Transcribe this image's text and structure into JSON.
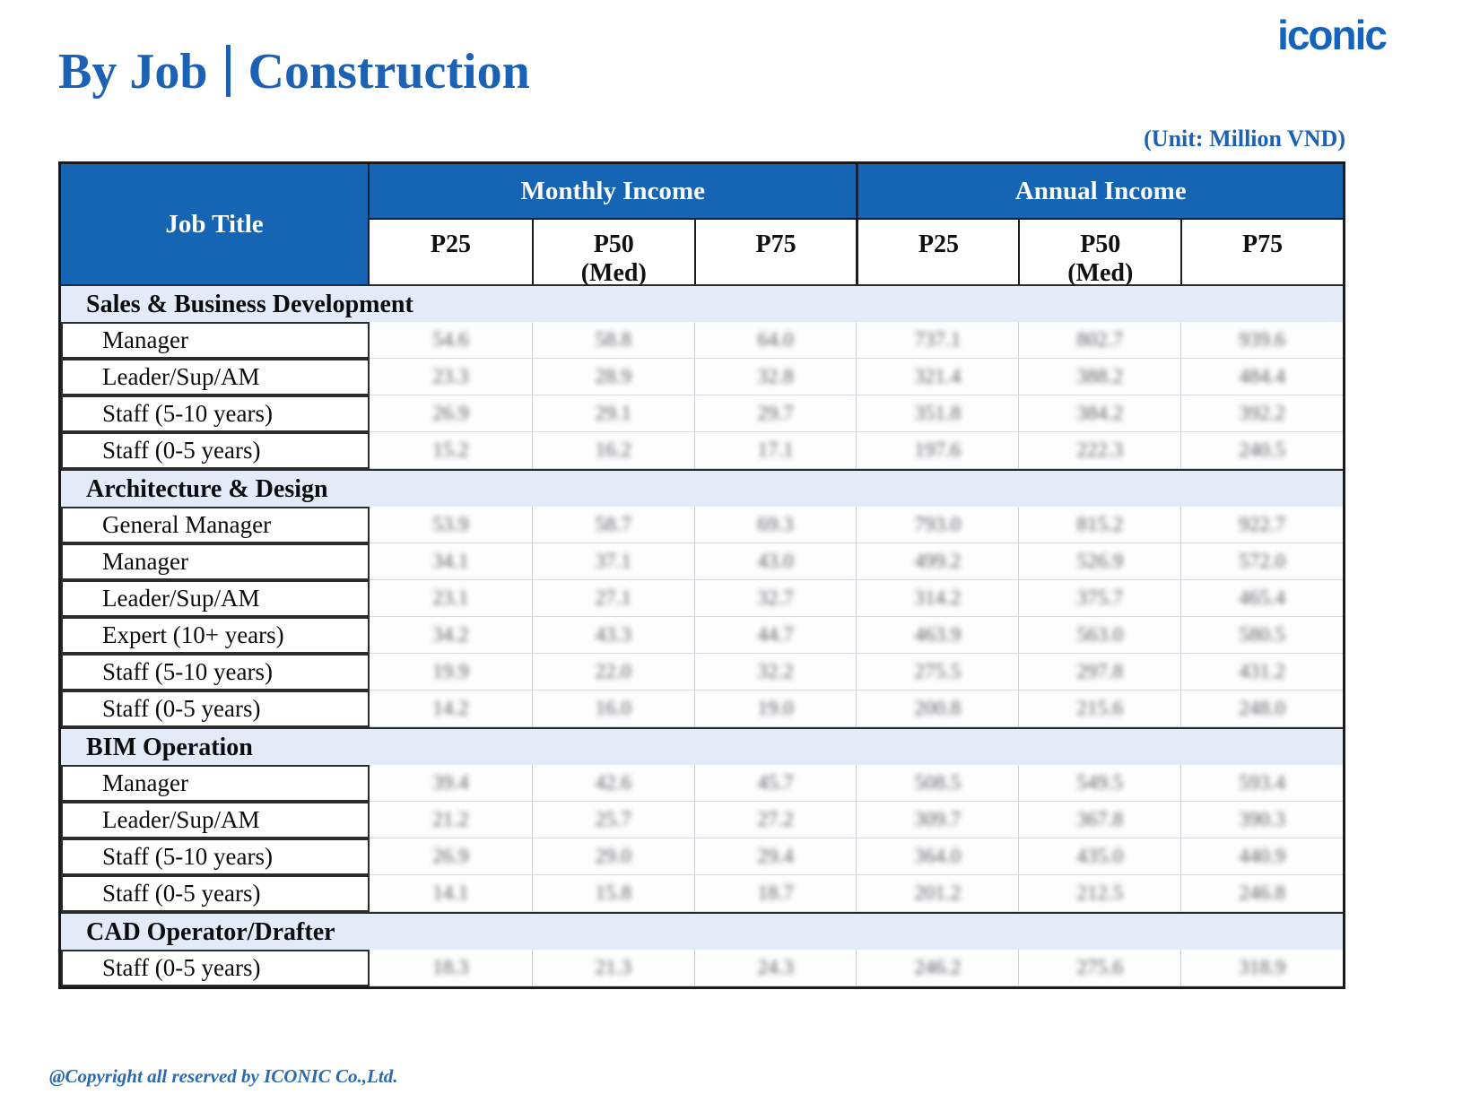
{
  "page": {
    "logo": "iconic",
    "title_left": "By Job",
    "title_right": "Construction",
    "unit_note": "(Unit: Million VND)",
    "footer": "@Copyright all reserved by ICONIC Co.,Ltd."
  },
  "table": {
    "job_title_header": "Job Title",
    "groups": [
      {
        "label": "Monthly Income"
      },
      {
        "label": "Annual Income"
      }
    ],
    "sub_headers": [
      {
        "line1": "P25",
        "line2": ""
      },
      {
        "line1": "P50",
        "line2": "(Med)"
      },
      {
        "line1": "P75",
        "line2": ""
      },
      {
        "line1": "P25",
        "line2": ""
      },
      {
        "line1": "P50",
        "line2": "(Med)"
      },
      {
        "line1": "P75",
        "line2": ""
      }
    ],
    "sections": [
      {
        "title": "Sales & Business Development",
        "rows": [
          {
            "label": "Manager",
            "values": [
              "54.6",
              "58.8",
              "64.0",
              "737.1",
              "802.7",
              "939.6"
            ]
          },
          {
            "label": "Leader/Sup/AM",
            "values": [
              "23.3",
              "28.9",
              "32.8",
              "321.4",
              "388.2",
              "484.4"
            ]
          },
          {
            "label": "Staff (5-10 years)",
            "values": [
              "26.9",
              "29.1",
              "29.7",
              "351.8",
              "384.2",
              "392.2"
            ]
          },
          {
            "label": "Staff (0-5 years)",
            "values": [
              "15.2",
              "16.2",
              "17.1",
              "197.6",
              "222.3",
              "240.5"
            ]
          }
        ]
      },
      {
        "title": "Architecture & Design",
        "rows": [
          {
            "label": "General Manager",
            "values": [
              "53.9",
              "58.7",
              "69.3",
              "793.0",
              "815.2",
              "922.7"
            ]
          },
          {
            "label": "Manager",
            "values": [
              "34.1",
              "37.1",
              "43.0",
              "499.2",
              "526.9",
              "572.0"
            ]
          },
          {
            "label": "Leader/Sup/AM",
            "values": [
              "23.1",
              "27.1",
              "32.7",
              "314.2",
              "375.7",
              "465.4"
            ]
          },
          {
            "label": "Expert (10+ years)",
            "values": [
              "34.2",
              "43.3",
              "44.7",
              "463.9",
              "563.0",
              "580.5"
            ]
          },
          {
            "label": "Staff (5-10 years)",
            "values": [
              "19.9",
              "22.0",
              "32.2",
              "275.5",
              "297.8",
              "431.2"
            ]
          },
          {
            "label": "Staff (0-5 years)",
            "values": [
              "14.2",
              "16.0",
              "19.0",
              "200.8",
              "215.6",
              "248.0"
            ]
          }
        ]
      },
      {
        "title": "BIM Operation",
        "rows": [
          {
            "label": "Manager",
            "values": [
              "39.4",
              "42.6",
              "45.7",
              "508.5",
              "549.5",
              "593.4"
            ]
          },
          {
            "label": "Leader/Sup/AM",
            "values": [
              "21.2",
              "25.7",
              "27.2",
              "309.7",
              "367.8",
              "390.3"
            ]
          },
          {
            "label": "Staff (5-10 years)",
            "values": [
              "26.9",
              "29.0",
              "29.4",
              "364.0",
              "435.0",
              "440.9"
            ]
          },
          {
            "label": "Staff (0-5 years)",
            "values": [
              "14.1",
              "15.8",
              "18.7",
              "201.2",
              "212.5",
              "246.8"
            ]
          }
        ]
      },
      {
        "title": "CAD Operator/Drafter",
        "rows": [
          {
            "label": "Staff (0-5 years)",
            "values": [
              "18.3",
              "21.3",
              "24.3",
              "246.2",
              "275.6",
              "318.9"
            ]
          }
        ]
      }
    ]
  }
}
